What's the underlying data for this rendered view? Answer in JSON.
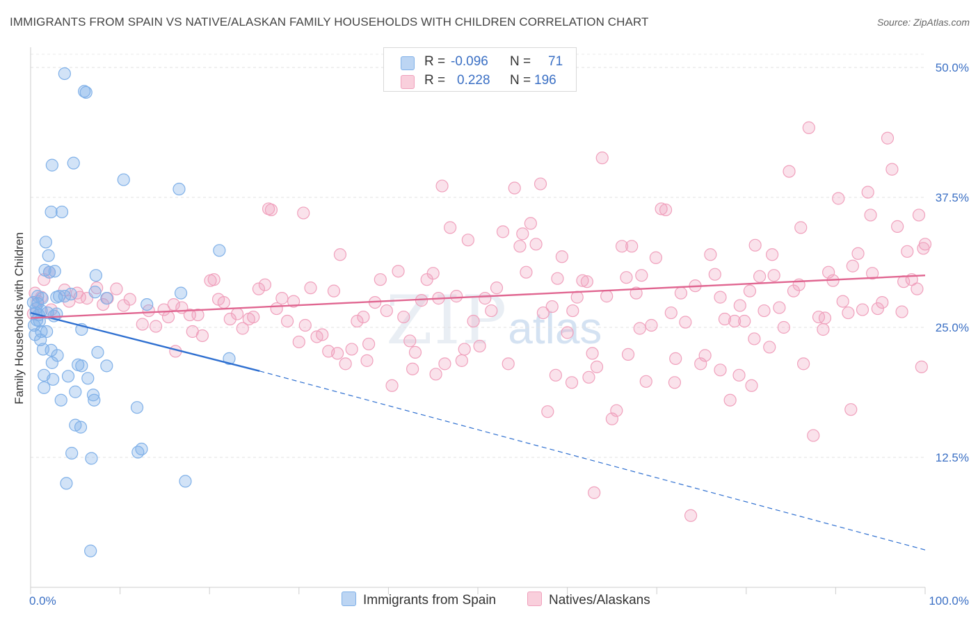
{
  "title": "IMMIGRANTS FROM SPAIN VS NATIVE/ALASKAN FAMILY HOUSEHOLDS WITH CHILDREN CORRELATION CHART",
  "source": "Source: ZipAtlas.com",
  "watermark": {
    "zip": "ZIP",
    "atlas": "atlas"
  },
  "colors": {
    "blue": "#7fb0e8",
    "blue_line": "#2e6fd0",
    "pink": "#f0a0bc",
    "pink_line": "#e06590",
    "tick_text": "#3a6fc4"
  },
  "legend": {
    "r_label": "R =",
    "n_label": "N =",
    "rows": [
      {
        "r": "-0.096",
        "n": "71"
      },
      {
        "r": "0.228",
        "n": "196"
      }
    ]
  },
  "chart_data": {
    "type": "scatter",
    "xlabel": "",
    "ylabel": "Family Households with Children",
    "xlim": [
      0,
      100
    ],
    "ylim": [
      0,
      50
    ],
    "x_ticks": [
      "0.0%",
      "100.0%"
    ],
    "y_ticks": [
      {
        "value": 12.5,
        "label": "12.5%"
      },
      {
        "value": 25.0,
        "label": "25.0%"
      },
      {
        "value": 37.5,
        "label": "37.5%"
      },
      {
        "value": 50.0,
        "label": "50.0%"
      }
    ],
    "grid": true,
    "series": [
      {
        "name": "Immigrants from Spain",
        "color": "#7fb0e8",
        "trend": {
          "x": [
            0,
            25.6
          ],
          "y": [
            26.4,
            20.8
          ],
          "dashed_to": [
            100,
            3.6
          ]
        },
        "points": [
          [
            0.3,
            27.4
          ],
          [
            0.4,
            25.2
          ],
          [
            0.5,
            24.3
          ],
          [
            0.6,
            26.8
          ],
          [
            0.6,
            26.4
          ],
          [
            0.7,
            25.7
          ],
          [
            0.8,
            28.0
          ],
          [
            0.8,
            27.3
          ],
          [
            0.9,
            26.2
          ],
          [
            1.0,
            25.6
          ],
          [
            1.1,
            23.8
          ],
          [
            1.2,
            24.6
          ],
          [
            1.2,
            26.6
          ],
          [
            1.3,
            27.8
          ],
          [
            1.4,
            22.9
          ],
          [
            1.5,
            20.4
          ],
          [
            1.5,
            19.2
          ],
          [
            1.6,
            30.5
          ],
          [
            1.7,
            33.2
          ],
          [
            1.8,
            24.6
          ],
          [
            1.9,
            26.4
          ],
          [
            2.0,
            31.9
          ],
          [
            2.1,
            30.3
          ],
          [
            2.3,
            36.1
          ],
          [
            2.3,
            22.8
          ],
          [
            2.4,
            21.6
          ],
          [
            2.4,
            40.6
          ],
          [
            2.5,
            20.0
          ],
          [
            2.6,
            26.1
          ],
          [
            2.7,
            30.4
          ],
          [
            2.9,
            26.3
          ],
          [
            2.9,
            27.9
          ],
          [
            3.0,
            22.3
          ],
          [
            3.2,
            28.0
          ],
          [
            3.4,
            18.0
          ],
          [
            3.5,
            36.1
          ],
          [
            3.8,
            28.0
          ],
          [
            3.8,
            49.4
          ],
          [
            4.0,
            10.0
          ],
          [
            4.2,
            20.3
          ],
          [
            4.5,
            28.2
          ],
          [
            4.6,
            12.9
          ],
          [
            4.8,
            40.8
          ],
          [
            5.0,
            15.6
          ],
          [
            5.0,
            18.8
          ],
          [
            5.3,
            21.4
          ],
          [
            5.6,
            15.4
          ],
          [
            5.7,
            21.3
          ],
          [
            5.7,
            24.8
          ],
          [
            6.0,
            47.7
          ],
          [
            6.2,
            47.6
          ],
          [
            6.4,
            20.1
          ],
          [
            6.7,
            3.5
          ],
          [
            6.8,
            12.4
          ],
          [
            7.0,
            18.5
          ],
          [
            7.2,
            28.4
          ],
          [
            7.1,
            18.0
          ],
          [
            7.3,
            30.0
          ],
          [
            7.5,
            22.6
          ],
          [
            8.5,
            21.3
          ],
          [
            8.5,
            27.8
          ],
          [
            10.4,
            39.2
          ],
          [
            11.9,
            17.3
          ],
          [
            12.0,
            13.0
          ],
          [
            12.4,
            13.3
          ],
          [
            13.0,
            27.2
          ],
          [
            16.6,
            38.3
          ],
          [
            16.8,
            28.3
          ],
          [
            17.3,
            10.2
          ],
          [
            21.1,
            32.4
          ],
          [
            22.2,
            22.0
          ]
        ]
      },
      {
        "name": "Natives/Alaskans",
        "color": "#f0a0bc",
        "trend": {
          "x": [
            0,
            100
          ],
          "y": [
            25.9,
            30.0
          ]
        },
        "points": [
          [
            0.3,
            26.3
          ],
          [
            0.5,
            28.3
          ],
          [
            0.8,
            27.5
          ],
          [
            1.2,
            27.9
          ],
          [
            1.5,
            29.6
          ],
          [
            2.1,
            30.3
          ],
          [
            2.3,
            26.7
          ],
          [
            3.8,
            28.6
          ],
          [
            4.3,
            27.5
          ],
          [
            5.2,
            28.3
          ],
          [
            5.5,
            27.9
          ],
          [
            6.3,
            27.8
          ],
          [
            7.4,
            28.8
          ],
          [
            8.1,
            27.2
          ],
          [
            8.6,
            27.8
          ],
          [
            9.6,
            28.7
          ],
          [
            10.4,
            27.1
          ],
          [
            11.1,
            27.7
          ],
          [
            12.5,
            25.3
          ],
          [
            13.2,
            26.6
          ],
          [
            14.0,
            25.1
          ],
          [
            14.9,
            26.7
          ],
          [
            15.4,
            26.0
          ],
          [
            16.0,
            27.2
          ],
          [
            16.2,
            22.7
          ],
          [
            16.9,
            26.9
          ],
          [
            17.8,
            26.2
          ],
          [
            18.1,
            24.6
          ],
          [
            18.7,
            26.2
          ],
          [
            19.2,
            24.2
          ],
          [
            20.1,
            29.5
          ],
          [
            20.5,
            29.6
          ],
          [
            21.0,
            27.7
          ],
          [
            21.6,
            27.4
          ],
          [
            22.3,
            25.8
          ],
          [
            23.1,
            26.3
          ],
          [
            23.7,
            24.9
          ],
          [
            24.4,
            25.8
          ],
          [
            24.9,
            26.0
          ],
          [
            25.5,
            28.7
          ],
          [
            26.2,
            29.1
          ],
          [
            26.9,
            36.3
          ],
          [
            27.5,
            26.8
          ],
          [
            28.1,
            27.8
          ],
          [
            28.7,
            25.6
          ],
          [
            29.4,
            27.5
          ],
          [
            30.0,
            23.6
          ],
          [
            30.7,
            25.2
          ],
          [
            31.3,
            28.8
          ],
          [
            32.0,
            24.1
          ],
          [
            32.6,
            24.3
          ],
          [
            33.3,
            22.7
          ],
          [
            33.9,
            28.5
          ],
          [
            34.6,
            32.0
          ],
          [
            35.2,
            21.5
          ],
          [
            35.9,
            22.9
          ],
          [
            36.5,
            25.6
          ],
          [
            37.2,
            26.0
          ],
          [
            37.8,
            23.4
          ],
          [
            38.5,
            27.4
          ],
          [
            39.1,
            29.6
          ],
          [
            39.8,
            26.6
          ],
          [
            40.4,
            19.4
          ],
          [
            41.1,
            30.4
          ],
          [
            41.7,
            26.0
          ],
          [
            42.4,
            23.7
          ],
          [
            43.0,
            22.6
          ],
          [
            43.7,
            27.6
          ],
          [
            44.3,
            29.6
          ],
          [
            45.0,
            30.2
          ],
          [
            45.6,
            27.8
          ],
          [
            46.3,
            21.5
          ],
          [
            46.9,
            34.6
          ],
          [
            47.6,
            28.0
          ],
          [
            48.2,
            21.8
          ],
          [
            48.9,
            33.4
          ],
          [
            49.5,
            25.6
          ],
          [
            50.2,
            23.2
          ],
          [
            50.8,
            27.8
          ],
          [
            51.5,
            26.6
          ],
          [
            52.1,
            28.8
          ],
          [
            52.8,
            34.2
          ],
          [
            53.4,
            21.5
          ],
          [
            54.1,
            38.4
          ],
          [
            54.7,
            32.8
          ],
          [
            55.4,
            30.3
          ],
          [
            55.9,
            35.0
          ],
          [
            56.5,
            33.0
          ],
          [
            57.0,
            38.8
          ],
          [
            57.3,
            26.4
          ],
          [
            57.8,
            16.9
          ],
          [
            58.3,
            27.0
          ],
          [
            58.9,
            29.7
          ],
          [
            59.4,
            31.8
          ],
          [
            60.0,
            24.5
          ],
          [
            60.6,
            26.6
          ],
          [
            61.1,
            27.9
          ],
          [
            61.7,
            29.5
          ],
          [
            62.2,
            29.4
          ],
          [
            62.8,
            22.5
          ],
          [
            63.3,
            21.2
          ],
          [
            63.9,
            41.3
          ],
          [
            64.4,
            28.0
          ],
          [
            65.0,
            16.2
          ],
          [
            65.5,
            17.0
          ],
          [
            66.1,
            32.8
          ],
          [
            66.6,
            29.8
          ],
          [
            67.2,
            32.8
          ],
          [
            67.7,
            28.3
          ],
          [
            68.3,
            30.0
          ],
          [
            68.8,
            19.8
          ],
          [
            69.4,
            25.2
          ],
          [
            69.9,
            31.7
          ],
          [
            70.5,
            36.4
          ],
          [
            71.0,
            36.3
          ],
          [
            71.6,
            26.4
          ],
          [
            72.1,
            22.0
          ],
          [
            72.7,
            28.3
          ],
          [
            73.2,
            25.5
          ],
          [
            73.8,
            6.9
          ],
          [
            74.3,
            29.0
          ],
          [
            74.9,
            21.5
          ],
          [
            75.4,
            22.3
          ],
          [
            76.0,
            32.0
          ],
          [
            76.5,
            30.1
          ],
          [
            77.1,
            27.9
          ],
          [
            77.6,
            25.8
          ],
          [
            78.2,
            18.0
          ],
          [
            78.7,
            25.6
          ],
          [
            79.3,
            27.1
          ],
          [
            79.8,
            25.6
          ],
          [
            80.4,
            28.5
          ],
          [
            80.9,
            23.9
          ],
          [
            81.5,
            29.9
          ],
          [
            82.0,
            26.6
          ],
          [
            82.6,
            23.1
          ],
          [
            83.1,
            30.0
          ],
          [
            83.7,
            26.9
          ],
          [
            84.2,
            25.0
          ],
          [
            84.8,
            40.0
          ],
          [
            85.3,
            28.5
          ],
          [
            85.9,
            29.1
          ],
          [
            86.4,
            21.5
          ],
          [
            87.0,
            44.2
          ],
          [
            87.5,
            14.6
          ],
          [
            88.1,
            26.0
          ],
          [
            88.6,
            24.8
          ],
          [
            89.2,
            30.3
          ],
          [
            89.7,
            29.5
          ],
          [
            90.3,
            37.4
          ],
          [
            90.8,
            27.5
          ],
          [
            91.4,
            26.4
          ],
          [
            91.9,
            30.9
          ],
          [
            92.5,
            32.1
          ],
          [
            93.0,
            26.7
          ],
          [
            93.6,
            38.0
          ],
          [
            94.1,
            30.2
          ],
          [
            94.7,
            26.8
          ],
          [
            95.2,
            27.4
          ],
          [
            95.8,
            43.2
          ],
          [
            96.3,
            40.2
          ],
          [
            96.9,
            34.7
          ],
          [
            97.4,
            26.5
          ],
          [
            98.0,
            32.3
          ],
          [
            98.5,
            29.6
          ],
          [
            99.1,
            28.7
          ],
          [
            99.6,
            21.2
          ],
          [
            100.0,
            33.0
          ],
          [
            72.0,
            19.7
          ],
          [
            63.0,
            9.1
          ],
          [
            30.5,
            36.0
          ],
          [
            46.0,
            38.6
          ],
          [
            81.0,
            32.9
          ],
          [
            82.9,
            32.0
          ],
          [
            55.0,
            34.0
          ],
          [
            58.7,
            20.4
          ],
          [
            60.5,
            19.7
          ],
          [
            62.4,
            20.2
          ],
          [
            66.8,
            22.4
          ],
          [
            68.1,
            24.9
          ],
          [
            77.1,
            20.9
          ],
          [
            79.2,
            20.4
          ],
          [
            80.6,
            19.4
          ],
          [
            86.1,
            34.6
          ],
          [
            88.8,
            25.9
          ],
          [
            91.7,
            17.1
          ],
          [
            93.9,
            35.8
          ],
          [
            97.6,
            29.4
          ],
          [
            99.3,
            35.8
          ],
          [
            99.8,
            32.6
          ],
          [
            42.7,
            21.0
          ],
          [
            45.3,
            20.5
          ],
          [
            48.5,
            22.9
          ],
          [
            37.6,
            21.8
          ],
          [
            34.3,
            22.5
          ],
          [
            26.6,
            36.4
          ]
        ]
      }
    ]
  },
  "bottom_legend": [
    {
      "label": "Immigrants from Spain"
    },
    {
      "label": "Natives/Alaskans"
    }
  ]
}
